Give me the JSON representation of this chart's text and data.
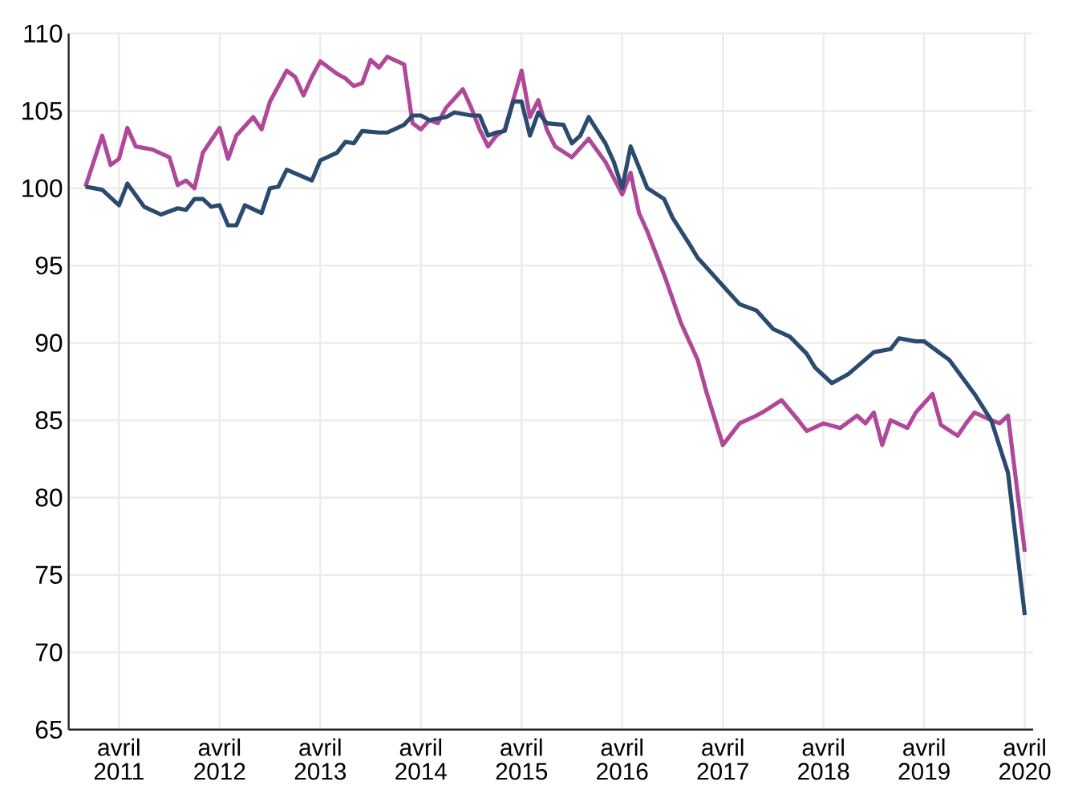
{
  "chart_data": {
    "type": "line",
    "ylim": [
      65,
      110
    ],
    "yticks": [
      65,
      70,
      75,
      80,
      85,
      90,
      95,
      100,
      105,
      110
    ],
    "xlim": [
      "2010-10",
      "2020-05"
    ],
    "xticks": [
      {
        "value": "2011-04",
        "label": "avril 2011"
      },
      {
        "value": "2012-04",
        "label": "avril 2012"
      },
      {
        "value": "2013-04",
        "label": "avril 2013"
      },
      {
        "value": "2014-04",
        "label": "avril 2014"
      },
      {
        "value": "2015-04",
        "label": "avril 2015"
      },
      {
        "value": "2016-04",
        "label": "avril 2016"
      },
      {
        "value": "2017-04",
        "label": "avril 2017"
      },
      {
        "value": "2018-04",
        "label": "avril 2018"
      },
      {
        "value": "2019-04",
        "label": "avril 2019"
      },
      {
        "value": "2020-04",
        "label": "avril 2020"
      }
    ],
    "grid": true,
    "marker": "none",
    "line_style": "solid",
    "series": [
      {
        "color": "#b0489a",
        "x": [
          "2010-12",
          "2011-02",
          "2011-03",
          "2011-04",
          "2011-05",
          "2011-06",
          "2011-08",
          "2011-10",
          "2011-11",
          "2011-12",
          "2012-01",
          "2012-02",
          "2012-04",
          "2012-05",
          "2012-06",
          "2012-08",
          "2012-09",
          "2012-10",
          "2012-12",
          "2013-01",
          "2013-02",
          "2013-03",
          "2013-04",
          "2013-06",
          "2013-07",
          "2013-08",
          "2013-09",
          "2013-10",
          "2013-11",
          "2013-12",
          "2014-02",
          "2014-03",
          "2014-04",
          "2014-05",
          "2014-06",
          "2014-07",
          "2014-09",
          "2014-10",
          "2014-11",
          "2014-12",
          "2015-01",
          "2015-02",
          "2015-04",
          "2015-05",
          "2015-06",
          "2015-07",
          "2015-08",
          "2015-10",
          "2015-12",
          "2016-02",
          "2016-04",
          "2016-05",
          "2016-06",
          "2016-07",
          "2016-09",
          "2016-11",
          "2017-01",
          "2017-02",
          "2017-04",
          "2017-06",
          "2017-08",
          "2017-09",
          "2017-11",
          "2018-01",
          "2018-02",
          "2018-04",
          "2018-06",
          "2018-08",
          "2018-09",
          "2018-10",
          "2018-11",
          "2018-12",
          "2019-02",
          "2019-03",
          "2019-05",
          "2019-06",
          "2019-08",
          "2019-09",
          "2019-10",
          "2019-12",
          "2020-01",
          "2020-02",
          "2020-04"
        ],
        "values": [
          100.1,
          103.4,
          101.5,
          101.9,
          103.9,
          102.7,
          102.5,
          102.0,
          100.2,
          100.5,
          100.0,
          102.3,
          103.9,
          101.9,
          103.4,
          104.6,
          103.8,
          105.6,
          107.6,
          107.2,
          106.0,
          107.2,
          108.2,
          107.4,
          107.1,
          106.6,
          106.8,
          108.3,
          107.8,
          108.5,
          108.0,
          104.2,
          103.8,
          104.4,
          104.2,
          105.2,
          106.4,
          105.2,
          103.8,
          102.7,
          103.4,
          103.8,
          107.6,
          104.6,
          105.7,
          103.8,
          102.7,
          102.0,
          103.2,
          101.7,
          99.6,
          101.0,
          98.4,
          97.2,
          94.4,
          91.3,
          88.9,
          86.9,
          83.4,
          84.8,
          85.3,
          85.6,
          86.3,
          85.0,
          84.3,
          84.8,
          84.5,
          85.3,
          84.8,
          85.5,
          83.4,
          85.0,
          84.5,
          85.5,
          86.7,
          84.7,
          84.0,
          84.8,
          85.5,
          85.0,
          84.8,
          85.3,
          76.5
        ]
      },
      {
        "color": "#2a4a70",
        "x": [
          "2010-12",
          "2011-02",
          "2011-04",
          "2011-05",
          "2011-07",
          "2011-09",
          "2011-11",
          "2011-12",
          "2012-01",
          "2012-02",
          "2012-03",
          "2012-04",
          "2012-05",
          "2012-06",
          "2012-07",
          "2012-09",
          "2012-10",
          "2012-11",
          "2012-12",
          "2013-03",
          "2013-04",
          "2013-06",
          "2013-07",
          "2013-08",
          "2013-09",
          "2013-11",
          "2013-12",
          "2014-02",
          "2014-03",
          "2014-04",
          "2014-05",
          "2014-07",
          "2014-08",
          "2014-10",
          "2014-11",
          "2014-12",
          "2015-01",
          "2015-02",
          "2015-03",
          "2015-04",
          "2015-05",
          "2015-06",
          "2015-07",
          "2015-09",
          "2015-10",
          "2015-11",
          "2015-12",
          "2016-02",
          "2016-03",
          "2016-04",
          "2016-05",
          "2016-07",
          "2016-09",
          "2016-10",
          "2016-12",
          "2017-01",
          "2017-02",
          "2017-04",
          "2017-06",
          "2017-08",
          "2017-10",
          "2017-12",
          "2018-02",
          "2018-03",
          "2018-05",
          "2018-07",
          "2018-10",
          "2018-12",
          "2019-01",
          "2019-03",
          "2019-04",
          "2019-06",
          "2019-07",
          "2019-10",
          "2019-12",
          "2020-02",
          "2020-04"
        ],
        "values": [
          100.1,
          99.9,
          98.9,
          100.3,
          98.8,
          98.3,
          98.7,
          98.6,
          99.3,
          99.3,
          98.8,
          98.9,
          97.6,
          97.6,
          98.9,
          98.4,
          100.0,
          100.1,
          101.2,
          100.5,
          101.8,
          102.3,
          103.0,
          102.9,
          103.7,
          103.6,
          103.6,
          104.1,
          104.7,
          104.7,
          104.4,
          104.6,
          104.9,
          104.7,
          104.7,
          103.4,
          103.6,
          103.7,
          105.6,
          105.6,
          103.4,
          104.9,
          104.2,
          104.1,
          102.9,
          103.4,
          104.6,
          102.9,
          101.7,
          100.0,
          102.7,
          100.0,
          99.3,
          98.1,
          96.4,
          95.5,
          94.9,
          93.7,
          92.5,
          92.1,
          90.9,
          90.4,
          89.3,
          88.4,
          87.4,
          88.0,
          89.4,
          89.6,
          90.3,
          90.1,
          90.1,
          89.3,
          88.9,
          86.7,
          85.0,
          81.6,
          72.4
        ]
      }
    ]
  }
}
